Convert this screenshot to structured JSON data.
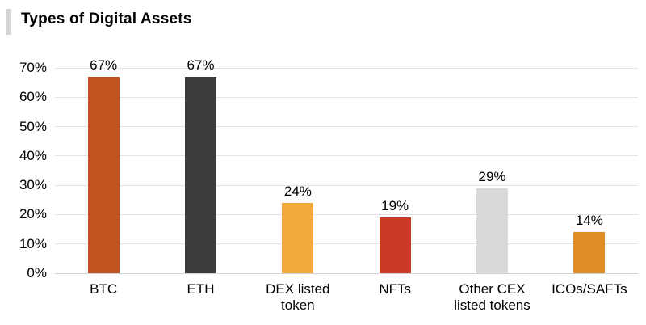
{
  "title": "Types of Digital Assets",
  "accent_color": "#d4d4d4",
  "chart_data": {
    "type": "bar",
    "title": "Types of Digital Assets",
    "categories": [
      "BTC",
      "ETH",
      "DEX listed token",
      "NFTs",
      "Other CEX listed tokens",
      "ICOs/SAFTs"
    ],
    "values": [
      67,
      67,
      24,
      19,
      29,
      14
    ],
    "value_labels": [
      "67%",
      "67%",
      "24%",
      "19%",
      "29%",
      "14%"
    ],
    "bar_colors": [
      "#c0531f",
      "#3c3c3c",
      "#f2a93b",
      "#ca3a27",
      "#d9d9d9",
      "#de8d26"
    ],
    "xlabel": "",
    "ylabel": "",
    "ylim": [
      0,
      70
    ],
    "ytick_step": 10,
    "ytick_labels": [
      "0%",
      "10%",
      "20%",
      "30%",
      "40%",
      "50%",
      "60%",
      "70%"
    ],
    "grid": true,
    "legend": "none",
    "gridline_color": "#e3e3e3",
    "axis_line_color": "#d2d2d2",
    "text_color": "#000000"
  }
}
